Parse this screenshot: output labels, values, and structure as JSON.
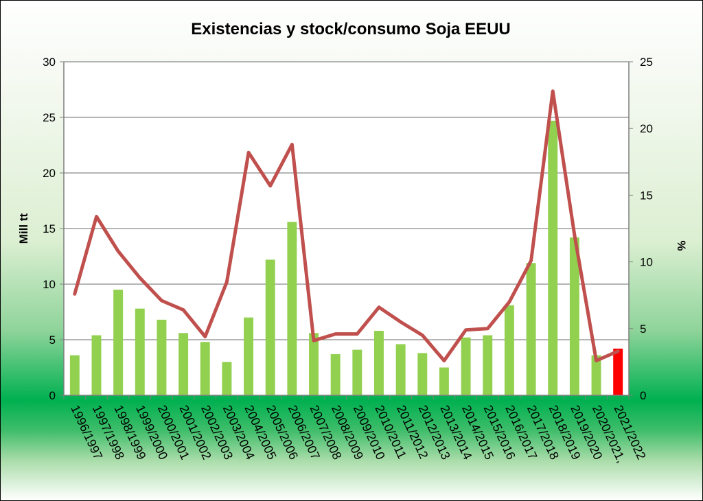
{
  "chart_data": {
    "type": "bar+line",
    "title": "Existencias y stock/consumo Soja EEUU",
    "ylabel": "Mill tt",
    "y2label": "%",
    "ylim": [
      0,
      30
    ],
    "y2lim": [
      0,
      25
    ],
    "yticks": [
      0,
      5,
      10,
      15,
      20,
      25,
      30
    ],
    "y2ticks": [
      0,
      5,
      10,
      15,
      20,
      25
    ],
    "grid": true,
    "legend": "none",
    "categories": [
      "1996/1997",
      "1997/1998",
      "1998/1999",
      "1999/2000",
      "2000/2001",
      "2001/2002",
      "2002/2003",
      "2003/2004",
      "2004/2005",
      "2005/2006",
      "2006/2007",
      "2007/2008",
      "2008/2009",
      "2009/2010",
      "2010/2011",
      "2011/2012",
      "2012/2013",
      "2013/2014",
      "2014/2015",
      "2015/2016",
      "2016/2017",
      "2017/2018",
      "2018/2019",
      "2019/2020",
      "2020/2021,",
      "2021/2022"
    ],
    "series": [
      {
        "axis": "left",
        "kind": "bar",
        "values": [
          3.6,
          5.4,
          9.5,
          7.8,
          6.8,
          5.6,
          4.8,
          3.0,
          7.0,
          12.2,
          15.6,
          5.6,
          3.7,
          4.1,
          5.8,
          4.6,
          3.8,
          2.5,
          5.2,
          5.4,
          8.1,
          11.9,
          24.7,
          14.2,
          3.6,
          4.2
        ],
        "colors": {
          "default": "#92d050",
          "highlight": "#ff0000",
          "highlight_index": 25
        }
      },
      {
        "axis": "right",
        "kind": "line",
        "color": "#c0504d",
        "values": [
          7.6,
          13.4,
          10.8,
          8.8,
          7.1,
          6.4,
          4.4,
          8.5,
          18.2,
          15.7,
          18.8,
          4.1,
          4.6,
          4.6,
          6.6,
          5.5,
          4.5,
          2.6,
          4.9,
          5.0,
          7.0,
          10.1,
          22.8,
          12.0,
          2.6,
          3.3
        ]
      }
    ]
  }
}
